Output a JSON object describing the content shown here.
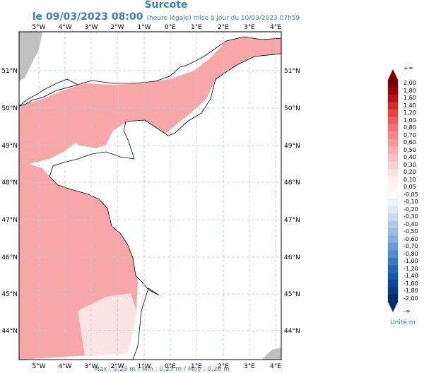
{
  "title": "Surcote",
  "subtitle": {
    "date": "le 09/03/2023 08:00",
    "note": "(heure légale) mise à jour du 10/03/2023 07h59"
  },
  "axes": {
    "lon_labels": [
      "5°W",
      "4°W",
      "3°W",
      "2°W",
      "1°W",
      "0°E",
      "1°E",
      "2°E",
      "3°E",
      "4°E"
    ],
    "lat_labels": [
      "51°N",
      "50°N",
      "49°N",
      "48°N",
      "47°N",
      "46°N",
      "45°N",
      "44°N"
    ]
  },
  "legend": {
    "top": "+∞",
    "bottom": "-∞",
    "labels": [
      "2,00",
      "1,80",
      "1,60",
      "1,40",
      "1,20",
      "1,00",
      "0,80",
      "0,70",
      "0,60",
      "0,50",
      "0,40",
      "0,30",
      "0,20",
      "0,10",
      "0,05",
      "-0,05",
      "-0,10",
      "-0,20",
      "-0,30",
      "-0,40",
      "-0,50",
      "-0,60",
      "-0,70",
      "-0,80",
      "-1,00",
      "-1,20",
      "-1,40",
      "-1,60",
      "-1,80",
      "-2,00"
    ],
    "colors": [
      "#7a0000",
      "#a00008",
      "#c0101a",
      "#d42a2a",
      "#e84040",
      "#f05a5a",
      "#f47272",
      "#f78686",
      "#f99a9a",
      "#fbadad",
      "#fcbfbf",
      "#fdd0d0",
      "#fee0e0",
      "#feeded",
      "#fff6f6",
      "#ffffff",
      "#eef4fc",
      "#dde8f8",
      "#c8daf2",
      "#b2cbec",
      "#9cbce6",
      "#84ace0",
      "#6b9bd8",
      "#538acf",
      "#3b78c6",
      "#2466b8",
      "#1556a8",
      "#0c4896",
      "#073b82",
      "#032e6c"
    ],
    "unit": "Unité:m"
  },
  "footer": "Max : 0,29 m / Min : 0,25 m / Moy : 0,26 m"
}
